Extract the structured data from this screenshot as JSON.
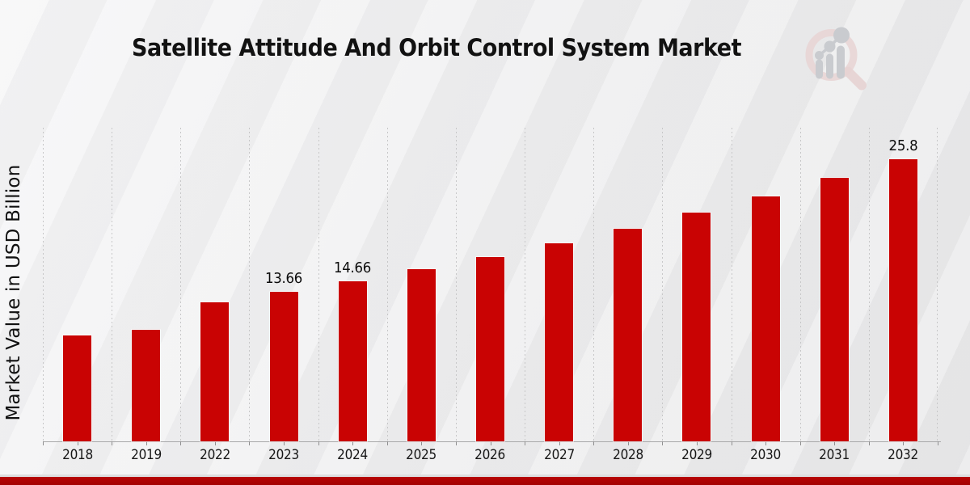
{
  "page": {
    "background_color": "#efeff0",
    "footer_band_color": "#b70404"
  },
  "brand": {
    "logo_icon": "magnifier-bar-chart-logo-icon",
    "ring_color": "#e5d0d0",
    "bars_color": "#c9cbcf"
  },
  "chart_data": {
    "type": "bar",
    "title": "Satellite Attitude And Orbit Control System Market",
    "xlabel": "",
    "ylabel": "Market Value in USD Billion",
    "categories": [
      "2018",
      "2019",
      "2022",
      "2023",
      "2024",
      "2025",
      "2026",
      "2027",
      "2028",
      "2029",
      "2030",
      "2031",
      "2032"
    ],
    "values": [
      9.7,
      10.2,
      12.72,
      13.66,
      14.66,
      15.74,
      16.89,
      18.13,
      19.47,
      20.9,
      22.43,
      24.08,
      25.8
    ],
    "data_labels": [
      "",
      "",
      "",
      "13.66",
      "14.66",
      "",
      "",
      "",
      "",
      "",
      "",
      "",
      "25.8"
    ],
    "ylim": [
      0,
      28.7
    ],
    "bar_color": "#c90303",
    "grid": "vertical-dashed-between-categories",
    "legend": "none",
    "y_tick_labels": "none"
  }
}
